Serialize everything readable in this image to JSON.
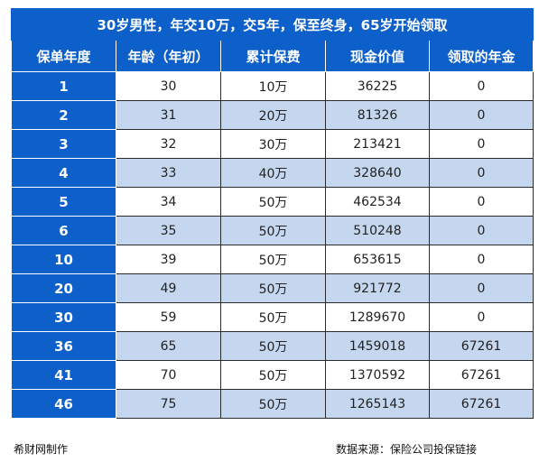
{
  "title": "30岁男性，年交10万，交5年，保至终身，65岁开始领取",
  "headers": [
    "保单年度",
    "年龄（年初）",
    "累计保费",
    "现金价值",
    "领取的年金"
  ],
  "rows": [
    [
      "1",
      "30",
      "10万",
      "36225",
      "0"
    ],
    [
      "2",
      "31",
      "20万",
      "81326",
      "0"
    ],
    [
      "3",
      "32",
      "30万",
      "213421",
      "0"
    ],
    [
      "4",
      "33",
      "40万",
      "328640",
      "0"
    ],
    [
      "5",
      "34",
      "50万",
      "462534",
      "0"
    ],
    [
      "6",
      "35",
      "50万",
      "510248",
      "0"
    ],
    [
      "10",
      "39",
      "50万",
      "653615",
      "0"
    ],
    [
      "20",
      "49",
      "50万",
      "921772",
      "0"
    ],
    [
      "30",
      "59",
      "50万",
      "1289670",
      "0"
    ],
    [
      "36",
      "65",
      "50万",
      "1459018",
      "67261"
    ],
    [
      "41",
      "70",
      "50万",
      "1370592",
      "67261"
    ],
    [
      "46",
      "75",
      "50万",
      "1265143",
      "67261"
    ]
  ],
  "footer": {
    "left": "希财网制作",
    "right": "数据来源：保险公司投保链接"
  },
  "colors": {
    "header_blue": "#0d5fc9",
    "alt_row": "#c5d7ef",
    "plain_row": "#ffffff"
  }
}
